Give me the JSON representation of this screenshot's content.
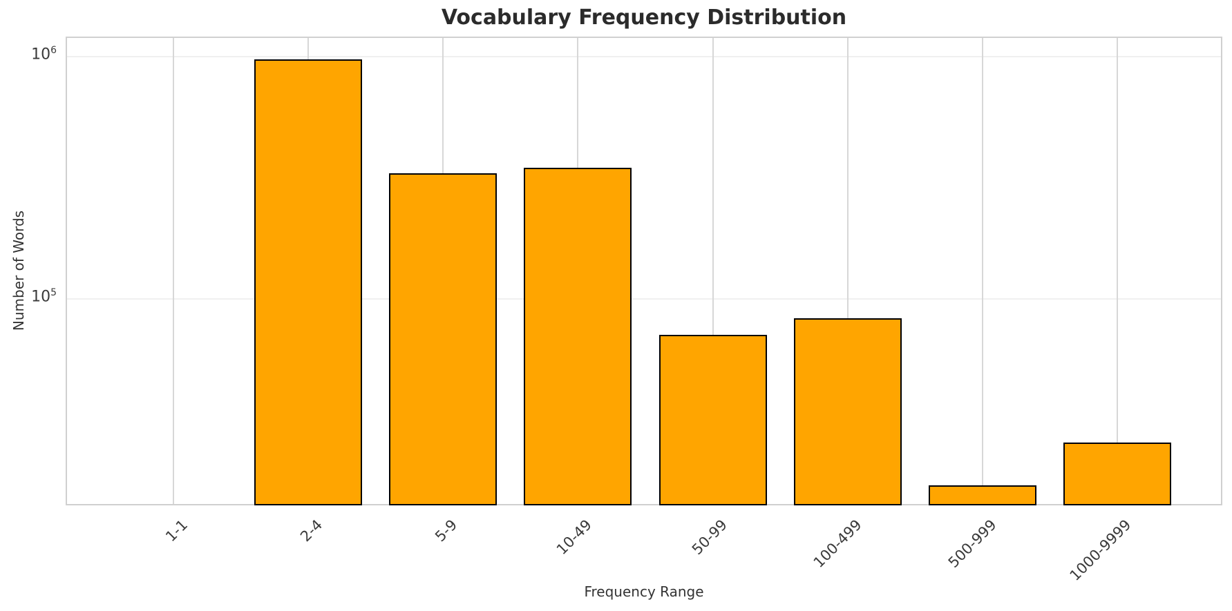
{
  "chart_data": {
    "type": "bar",
    "title": "Vocabulary Frequency Distribution",
    "xlabel": "Frequency Range",
    "ylabel": "Number of Words",
    "categories": [
      "1-1",
      "2-4",
      "5-9",
      "10-49",
      "50-99",
      "100-499",
      "500-999",
      "1000-9999"
    ],
    "values": [
      0,
      975000,
      331000,
      348000,
      71000,
      83000,
      17000,
      25500
    ],
    "yscale": "log",
    "ylim": [
      13880,
      1194000
    ],
    "xlim": [
      -0.79,
      7.79
    ],
    "bar_width": 0.8,
    "grid": true,
    "x_tick_rotation": 45,
    "yticks": [
      {
        "value": 1000000,
        "base": "10",
        "exp": "6"
      },
      {
        "value": 100000,
        "base": "10",
        "exp": "5"
      }
    ],
    "legend": null,
    "colors": {
      "bar_fill": "#FFA500",
      "bar_edge": "#000000",
      "grid_horizontal": "#f0f0f0",
      "grid_vertical": "#d7d7d7",
      "spine": "#d0d0d0",
      "title_text": "#2b2b2b",
      "tick_text": "#3a3a3a",
      "axis_label_text": "#333333",
      "background": "#ffffff"
    }
  }
}
